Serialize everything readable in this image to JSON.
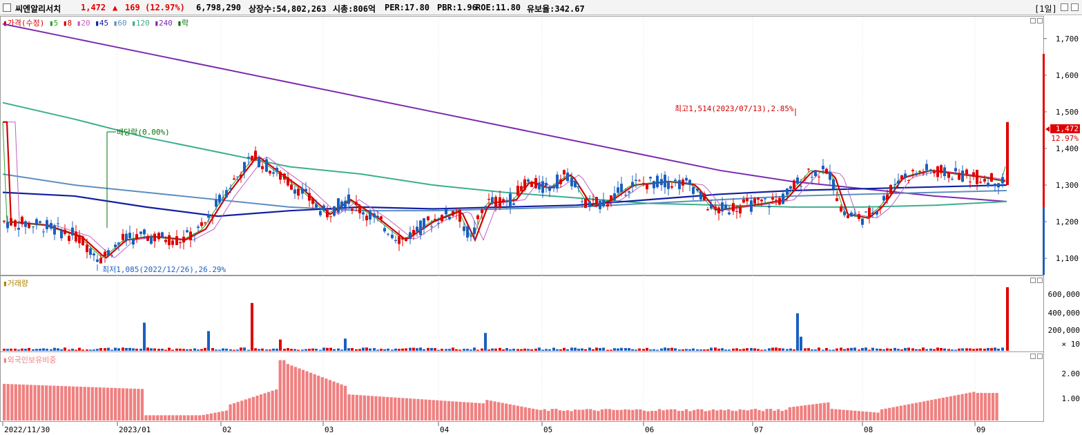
{
  "header": {
    "name": "씨엔알리서치",
    "price": "1,472",
    "change_arrow": "▲",
    "change": "169",
    "change_pct": "(12.97%)",
    "volume": "6,798,290",
    "listed_shares": "상장수:54,802,263",
    "market_cap": "시총:806억",
    "per": "PER:17.80",
    "pbr": "PBR:1.96",
    "roe": "ROE:11.80",
    "retention": "유보율:342.67",
    "period": "[1일]"
  },
  "price_panel": {
    "legend": [
      {
        "label": "가격(수정)",
        "color": "#d00000"
      },
      {
        "label": "5",
        "color": "#2aa02a"
      },
      {
        "label": "8",
        "color": "#d00000"
      },
      {
        "label": "20",
        "color": "#c060c0"
      },
      {
        "label": "45",
        "color": "#1020a0"
      },
      {
        "label": "60",
        "color": "#5b8fc0"
      },
      {
        "label": "120",
        "color": "#3aae8e"
      },
      {
        "label": "240",
        "color": "#7b2ab0"
      },
      {
        "label": "락",
        "color": "#007000"
      }
    ],
    "high_note": "최고1,514(2023/07/13),2.85%",
    "low_note": "최저1,085(2022/12/26),26.29%",
    "dividend_note": "배당락(0.00%)",
    "current_tag": "1,472",
    "current_pct": "12.97%",
    "y_ticks": [
      "1,700",
      "1,600",
      "1,500",
      "1,400",
      "1,300",
      "1,200",
      "1,100"
    ]
  },
  "volume_panel": {
    "legend": "거래량",
    "y_ticks": [
      "600,000",
      "400,000",
      "200,000"
    ],
    "unit": "× 10"
  },
  "foreign_panel": {
    "legend": "외국인보유비중",
    "y_ticks": [
      "2.00",
      "1.00"
    ]
  },
  "x_axis": {
    "labels": [
      "2022/11/30",
      "2023/01",
      "02",
      "03",
      "04",
      "05",
      "06",
      "07",
      "08",
      "09"
    ]
  },
  "colors": {
    "up": "#e00000",
    "down": "#1a5fbf",
    "ma5": "#2aa02a",
    "ma8": "#d00000",
    "ma20": "#c060c0",
    "ma45": "#1020a0",
    "ma60": "#5b8fc0",
    "ma120": "#3aae8e",
    "ma240": "#7b2ab0",
    "foreign_bar": "#f08080"
  },
  "chart_data": {
    "type": "candlestick",
    "x_start": "2022/11/30",
    "price_range": [
      1055,
      1760
    ],
    "high": 1514,
    "low": 1085,
    "close_last": 1472,
    "volume_range": [
      0,
      700000
    ],
    "foreign_range": [
      0,
      2.5
    ],
    "ma240_points": [
      1740,
      1700,
      1660,
      1620,
      1580,
      1540,
      1500,
      1460,
      1420,
      1380,
      1340,
      1310,
      1290,
      1270,
      1255
    ],
    "ma120_points": [
      1525,
      1480,
      1430,
      1390,
      1350,
      1330,
      1300,
      1280,
      1265,
      1250,
      1245,
      1240,
      1240,
      1245,
      1255
    ],
    "ma60_points": [
      1330,
      1300,
      1280,
      1260,
      1240,
      1230,
      1230,
      1235,
      1240,
      1250,
      1260,
      1270,
      1275,
      1280,
      1285
    ],
    "ma45_points": [
      1280,
      1270,
      1240,
      1215,
      1230,
      1240,
      1235,
      1240,
      1245,
      1260,
      1275,
      1285,
      1290,
      1295,
      1300
    ]
  }
}
